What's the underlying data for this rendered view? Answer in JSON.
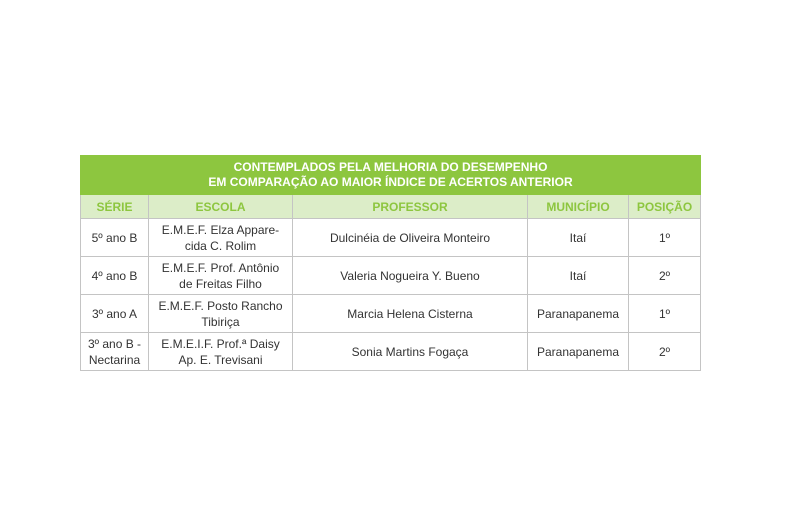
{
  "table": {
    "title": "CONTEMPLADOS PELA MELHORIA DO DESEMPENHO\nEM COMPARAÇÃO AO MAIOR ÍNDICE DE ACERTOS ANTERIOR",
    "columns": [
      "SÉRIE",
      "ESCOLA",
      "PROFESSOR",
      "MUNICÍPIO",
      "POSIÇÃO"
    ],
    "rows": [
      [
        "5º ano B",
        "E.M.E.F. Elza Appare-\ncida C. Rolim",
        "Dulcinéia de Oliveira Monteiro",
        "Itaí",
        "1º"
      ],
      [
        "4º ano B",
        "E.M.E.F. Prof. Antônio\nde Freitas Filho",
        "Valeria Nogueira Y. Bueno",
        "Itaí",
        "2º"
      ],
      [
        "3º ano A",
        "E.M.E.F. Posto Rancho\nTibiriça",
        "Marcia Helena Cisterna",
        "Paranapanema",
        "1º"
      ],
      [
        "3º ano B -\nNectarina",
        "E.M.E.I.F. Prof.ª Daisy\nAp. E. Trevisani",
        "Sonia Martins Fogaça",
        "Paranapanema",
        "2º"
      ]
    ],
    "colors": {
      "title_bg": "#8dc63f",
      "header_bg": "#dcedc8",
      "header_text": "#8dc63f"
    }
  }
}
